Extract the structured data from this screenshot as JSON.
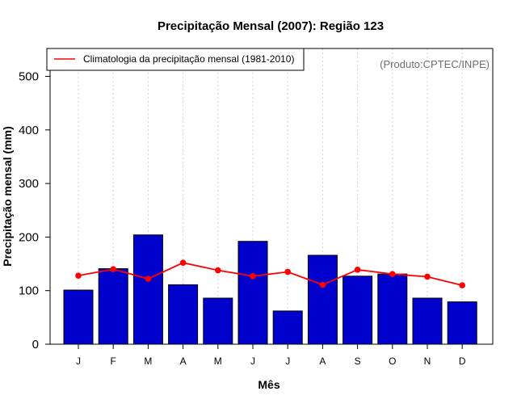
{
  "chart_data": {
    "type": "bar",
    "title": "Precipitação Mensal (2007): Região 123",
    "xlabel": "Mês",
    "ylabel": "Precipitação mensal (mm)",
    "categories": [
      "J",
      "F",
      "M",
      "A",
      "M",
      "J",
      "J",
      "A",
      "S",
      "O",
      "N",
      "D"
    ],
    "ylim": [
      0,
      560
    ],
    "yticks": [
      0,
      100,
      200,
      300,
      400,
      500
    ],
    "grid": "vertical-dotted",
    "series": [
      {
        "name": "Precipitação mensal 2007",
        "type": "bar",
        "color": "#0000cd",
        "values": [
          101,
          141,
          204,
          111,
          86,
          192,
          62,
          166,
          127,
          131,
          86,
          79
        ]
      },
      {
        "name": "Climatologia da precipitação mensal (1981-2010)",
        "type": "line",
        "color": "#ff0000",
        "values": [
          128,
          140,
          122,
          152,
          138,
          127,
          135,
          111,
          139,
          131,
          126,
          110
        ]
      }
    ],
    "legend": {
      "position": "top-left",
      "entries": [
        "Climatologia da precipitação mensal (1981-2010)"
      ]
    },
    "annotation": "(Produto:CPTEC/INPE)"
  }
}
